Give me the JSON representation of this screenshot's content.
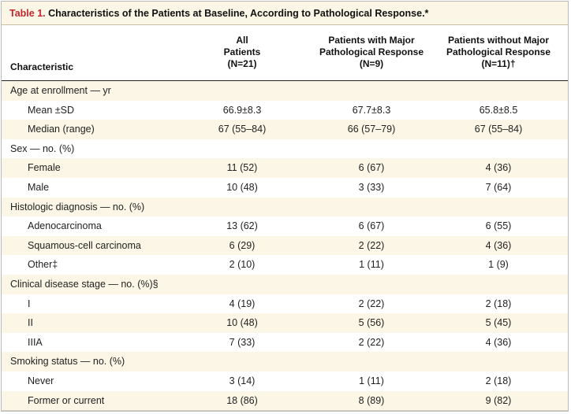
{
  "title": {
    "label": "Table 1.",
    "text": "Characteristics of the Patients at Baseline, According to Pathological Response.*"
  },
  "header": {
    "characteristic": "Characteristic",
    "col1": [
      "All",
      "Patients",
      "(N=21)"
    ],
    "col2": [
      "Patients with Major",
      "Pathological Response",
      "(N=9)"
    ],
    "col3": [
      "Patients without Major",
      "Pathological Response",
      "(N=11)†"
    ]
  },
  "rows": [
    {
      "label": "Age at enrollment — yr",
      "type": "category",
      "values": [
        "",
        "",
        ""
      ]
    },
    {
      "label": "Mean ±SD",
      "type": "item",
      "values": [
        "66.9±8.3",
        "67.7±8.3",
        "65.8±8.5"
      ]
    },
    {
      "label": "Median (range)",
      "type": "item",
      "values": [
        "67 (55–84)",
        "66 (57–79)",
        "67 (55–84)"
      ]
    },
    {
      "label": "Sex — no. (%)",
      "type": "category",
      "values": [
        "",
        "",
        ""
      ]
    },
    {
      "label": "Female",
      "type": "item",
      "values": [
        "11 (52)",
        "6 (67)",
        "4 (36)"
      ]
    },
    {
      "label": "Male",
      "type": "item",
      "values": [
        "10 (48)",
        "3 (33)",
        "7 (64)"
      ]
    },
    {
      "label": "Histologic diagnosis — no. (%)",
      "type": "category",
      "values": [
        "",
        "",
        ""
      ]
    },
    {
      "label": "Adenocarcinoma",
      "type": "item",
      "values": [
        "13 (62)",
        "6 (67)",
        "6 (55)"
      ]
    },
    {
      "label": "Squamous-cell carcinoma",
      "type": "item",
      "values": [
        "6 (29)",
        "2 (22)",
        "4 (36)"
      ]
    },
    {
      "label": "Other‡",
      "type": "item",
      "values": [
        "2 (10)",
        "1 (11)",
        "1 (9)"
      ]
    },
    {
      "label": "Clinical disease stage — no. (%)§",
      "type": "category",
      "values": [
        "",
        "",
        ""
      ]
    },
    {
      "label": "I",
      "type": "item",
      "values": [
        "4 (19)",
        "2 (22)",
        "2 (18)"
      ]
    },
    {
      "label": "II",
      "type": "item",
      "values": [
        "10 (48)",
        "5 (56)",
        "5 (45)"
      ]
    },
    {
      "label": "IIIA",
      "type": "item",
      "values": [
        "7 (33)",
        "2 (22)",
        "4 (36)"
      ]
    },
    {
      "label": "Smoking status — no. (%)",
      "type": "category",
      "values": [
        "",
        "",
        ""
      ]
    },
    {
      "label": "Never",
      "type": "item",
      "values": [
        "3 (14)",
        "1 (11)",
        "2 (18)"
      ]
    },
    {
      "label": "Former or current",
      "type": "item",
      "values": [
        "18 (86)",
        "8 (89)",
        "9 (82)"
      ]
    }
  ],
  "colors": {
    "accent": "#c0272d",
    "shade": "#fbf6e6",
    "background": "#ffffff"
  }
}
